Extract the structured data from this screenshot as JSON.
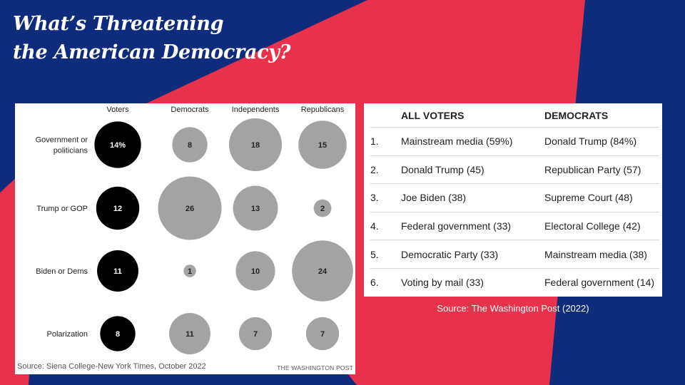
{
  "colors": {
    "background_navy": "#0f2b7c",
    "accent_red": "#e8314a",
    "voters_bubble": "#000000",
    "party_bubble": "#a3a3a3"
  },
  "title": {
    "line1": "What’s Threatening",
    "line2": "the American Democracy?"
  },
  "chart_data": {
    "type": "bubble",
    "title": "",
    "columns": [
      "Voters",
      "Democrats",
      "Independents",
      "Republicans"
    ],
    "rows": [
      "Government or politicians",
      "Trump or GOP",
      "Biden or Dems",
      "Polarization"
    ],
    "row_labels": [
      [
        "Government or",
        "politicians"
      ],
      [
        "Trump or GOP"
      ],
      [
        "Biden or Dems"
      ],
      [
        "Polarization"
      ]
    ],
    "values": [
      [
        14,
        8,
        18,
        15
      ],
      [
        12,
        26,
        13,
        2
      ],
      [
        11,
        1,
        10,
        24
      ],
      [
        8,
        11,
        7,
        7
      ]
    ],
    "value_labels": [
      [
        "14%",
        "8",
        "18",
        "15"
      ],
      [
        "12",
        "26",
        "13",
        "2"
      ],
      [
        "11",
        "1",
        "10",
        "24"
      ],
      [
        "8",
        "11",
        "7",
        "7"
      ]
    ],
    "unit": "%",
    "source": "Source: Siena College-New York Times, October 2022",
    "credit": "THE WASHINGTON POST"
  },
  "table": {
    "headers": [
      "",
      "ALL VOTERS",
      "DEMOCRATS"
    ],
    "rows": [
      [
        "1.",
        "Mainstream media (59%)",
        "Donald Trump (84%)"
      ],
      [
        "2.",
        "Donald Trump (45)",
        "Republican Party (57)"
      ],
      [
        "3.",
        "Joe Biden (38)",
        "Supreme Court (48)"
      ],
      [
        "4.",
        "Federal government (33)",
        "Electoral College (42)"
      ],
      [
        "5.",
        "Democratic Party (33)",
        "Mainstream media (38)"
      ],
      [
        "6.",
        "Voting by mail (33)",
        "Federal government (14)"
      ]
    ],
    "source": "Source: The Washington Post (2022)"
  }
}
